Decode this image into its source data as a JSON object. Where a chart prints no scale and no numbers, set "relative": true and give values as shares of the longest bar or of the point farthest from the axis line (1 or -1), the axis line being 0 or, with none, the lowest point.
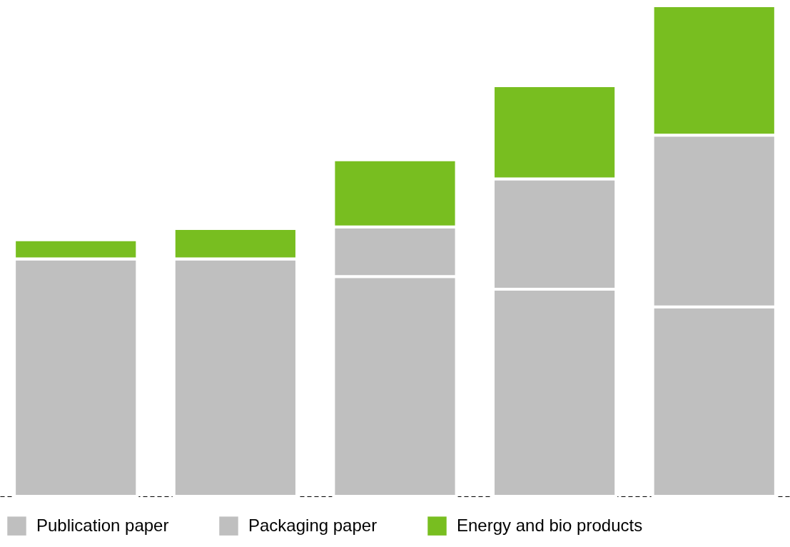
{
  "chart_data": {
    "type": "bar",
    "relative": true,
    "stacked": true,
    "categories": [
      null,
      null,
      null,
      null,
      null
    ],
    "series": [
      {
        "name": "Publication paper",
        "color": "#bfbfbf",
        "values": [
          0.484,
          0.484,
          0.448,
          0.422,
          0.386
        ]
      },
      {
        "name": "Packaging paper",
        "color": "#bfbfbf",
        "values": [
          0,
          0,
          0.101,
          0.225,
          0.35
        ]
      },
      {
        "name": "Energy and bio products",
        "color": "#78be20",
        "values": [
          0.039,
          0.062,
          0.137,
          0.19,
          0.264
        ]
      }
    ],
    "legend": "bottom",
    "tick_labels": false,
    "grid": false,
    "line_style": "dashed"
  }
}
